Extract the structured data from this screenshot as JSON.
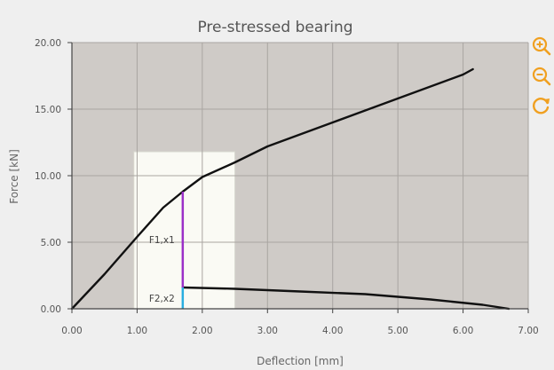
{
  "chart_data": {
    "type": "line",
    "title": "Pre-stressed bearing",
    "xlabel": "Deflection [mm]",
    "ylabel": "Force [kN]",
    "xlim": [
      0,
      7
    ],
    "ylim": [
      0,
      20
    ],
    "x_ticks": [
      "0.00",
      "1.00",
      "2.00",
      "3.00",
      "4.00",
      "5.00",
      "6.00",
      "7.00"
    ],
    "y_ticks": [
      "0.00",
      "5.00",
      "10.00",
      "15.00",
      "20.00"
    ],
    "grid": true,
    "series": [
      {
        "color": "#111111",
        "points": [
          [
            0.0,
            0.0
          ],
          [
            0.5,
            2.6
          ],
          [
            1.0,
            5.4
          ],
          [
            1.4,
            7.6
          ],
          [
            1.7,
            8.8
          ],
          [
            2.0,
            9.9
          ],
          [
            2.5,
            11.0
          ],
          [
            3.0,
            12.2
          ],
          [
            4.0,
            14.0
          ],
          [
            5.0,
            15.8
          ],
          [
            6.0,
            17.6
          ],
          [
            6.15,
            18.0
          ]
        ]
      },
      {
        "color": "#111111",
        "points": [
          [
            1.7,
            1.6
          ],
          [
            2.5,
            1.5
          ],
          [
            3.5,
            1.3
          ],
          [
            4.5,
            1.1
          ],
          [
            5.5,
            0.7
          ],
          [
            6.3,
            0.3
          ],
          [
            6.7,
            0.0
          ]
        ]
      }
    ],
    "highlight_band": {
      "x0": 0.95,
      "x1": 2.5,
      "y_top": 11.8,
      "color": "#fafaf4"
    },
    "markers": [
      {
        "label": "F1,x1",
        "x": 1.7,
        "y_from": 1.6,
        "y_to": 8.8,
        "color": "#9b30c8"
      },
      {
        "label": "F2,x2",
        "x": 1.7,
        "y_from": 0.0,
        "y_to": 1.6,
        "color": "#29aee0"
      }
    ]
  },
  "toolbar": {
    "zoom_in": "zoom-in",
    "zoom_out": "zoom-out",
    "reset": "reset",
    "accent_color": "#f0a020"
  }
}
